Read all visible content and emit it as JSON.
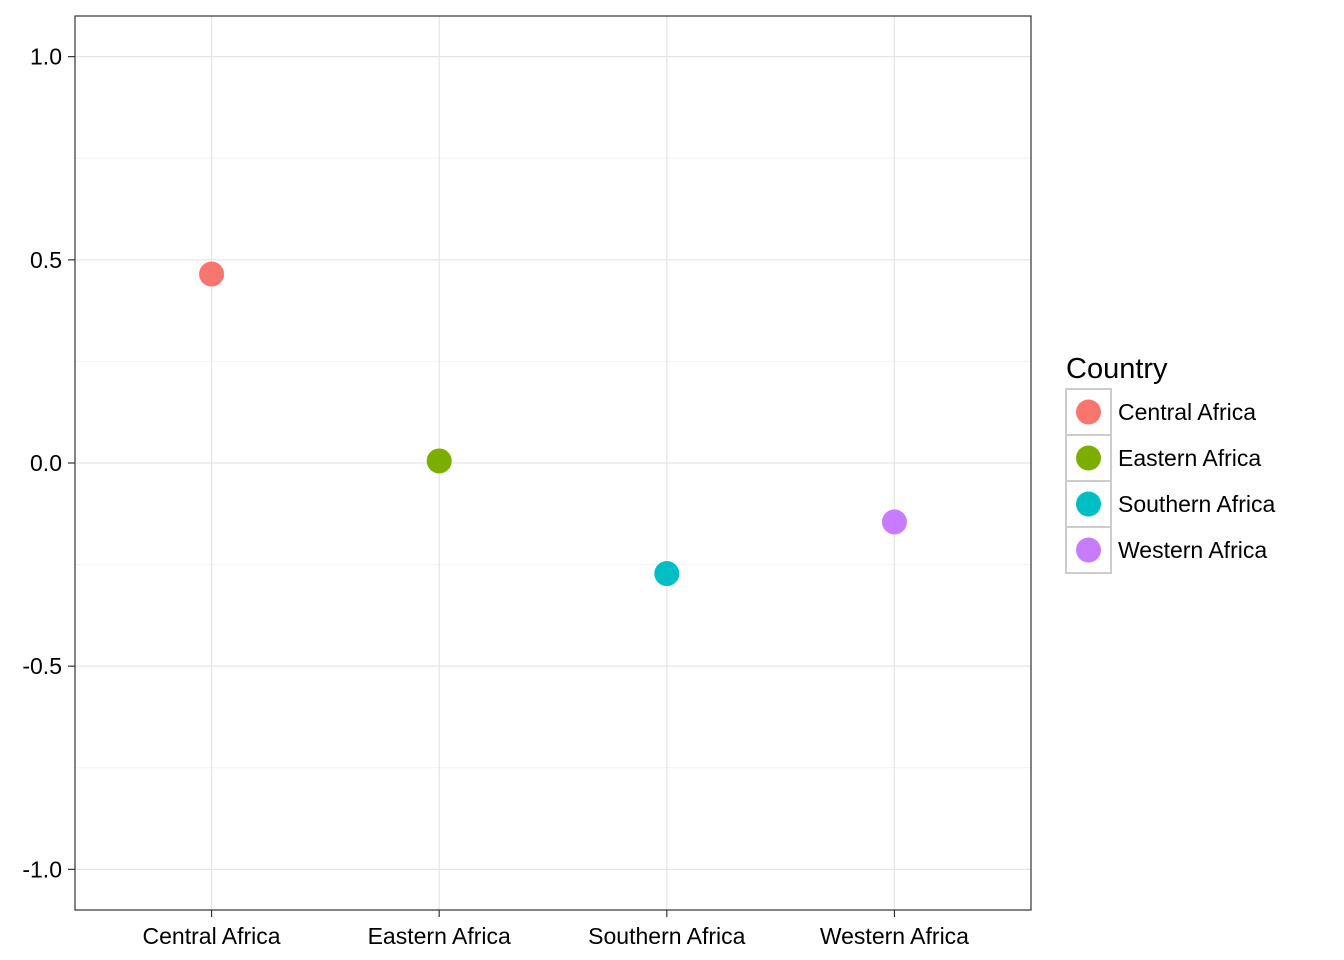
{
  "chart_data": {
    "type": "scatter",
    "title": "",
    "xlabel": "",
    "ylabel": "",
    "categories": [
      "Central Africa",
      "Eastern Africa",
      "Southern Africa",
      "Western Africa"
    ],
    "ylim": [
      -1.1,
      1.1
    ],
    "yticks": [
      1.0,
      0.5,
      0.0,
      -0.5,
      -1.0
    ],
    "ytick_labels": [
      "1.0",
      "0.5",
      "0.0",
      "-0.5",
      "-1.0"
    ],
    "grid": true,
    "points": [
      {
        "category": "Central Africa",
        "value": 0.465,
        "color": "#F8766D"
      },
      {
        "category": "Eastern Africa",
        "value": 0.005,
        "color": "#7CAE00"
      },
      {
        "category": "Southern Africa",
        "value": -0.272,
        "color": "#00BFC4"
      },
      {
        "category": "Western Africa",
        "value": -0.145,
        "color": "#C77CFF"
      }
    ],
    "legend": {
      "title": "Country",
      "placement": "right",
      "items": [
        {
          "label": "Central Africa",
          "color": "#F8766D"
        },
        {
          "label": "Eastern Africa",
          "color": "#7CAE00"
        },
        {
          "label": "Southern Africa",
          "color": "#00BFC4"
        },
        {
          "label": "Western Africa",
          "color": "#C77CFF"
        }
      ]
    }
  }
}
